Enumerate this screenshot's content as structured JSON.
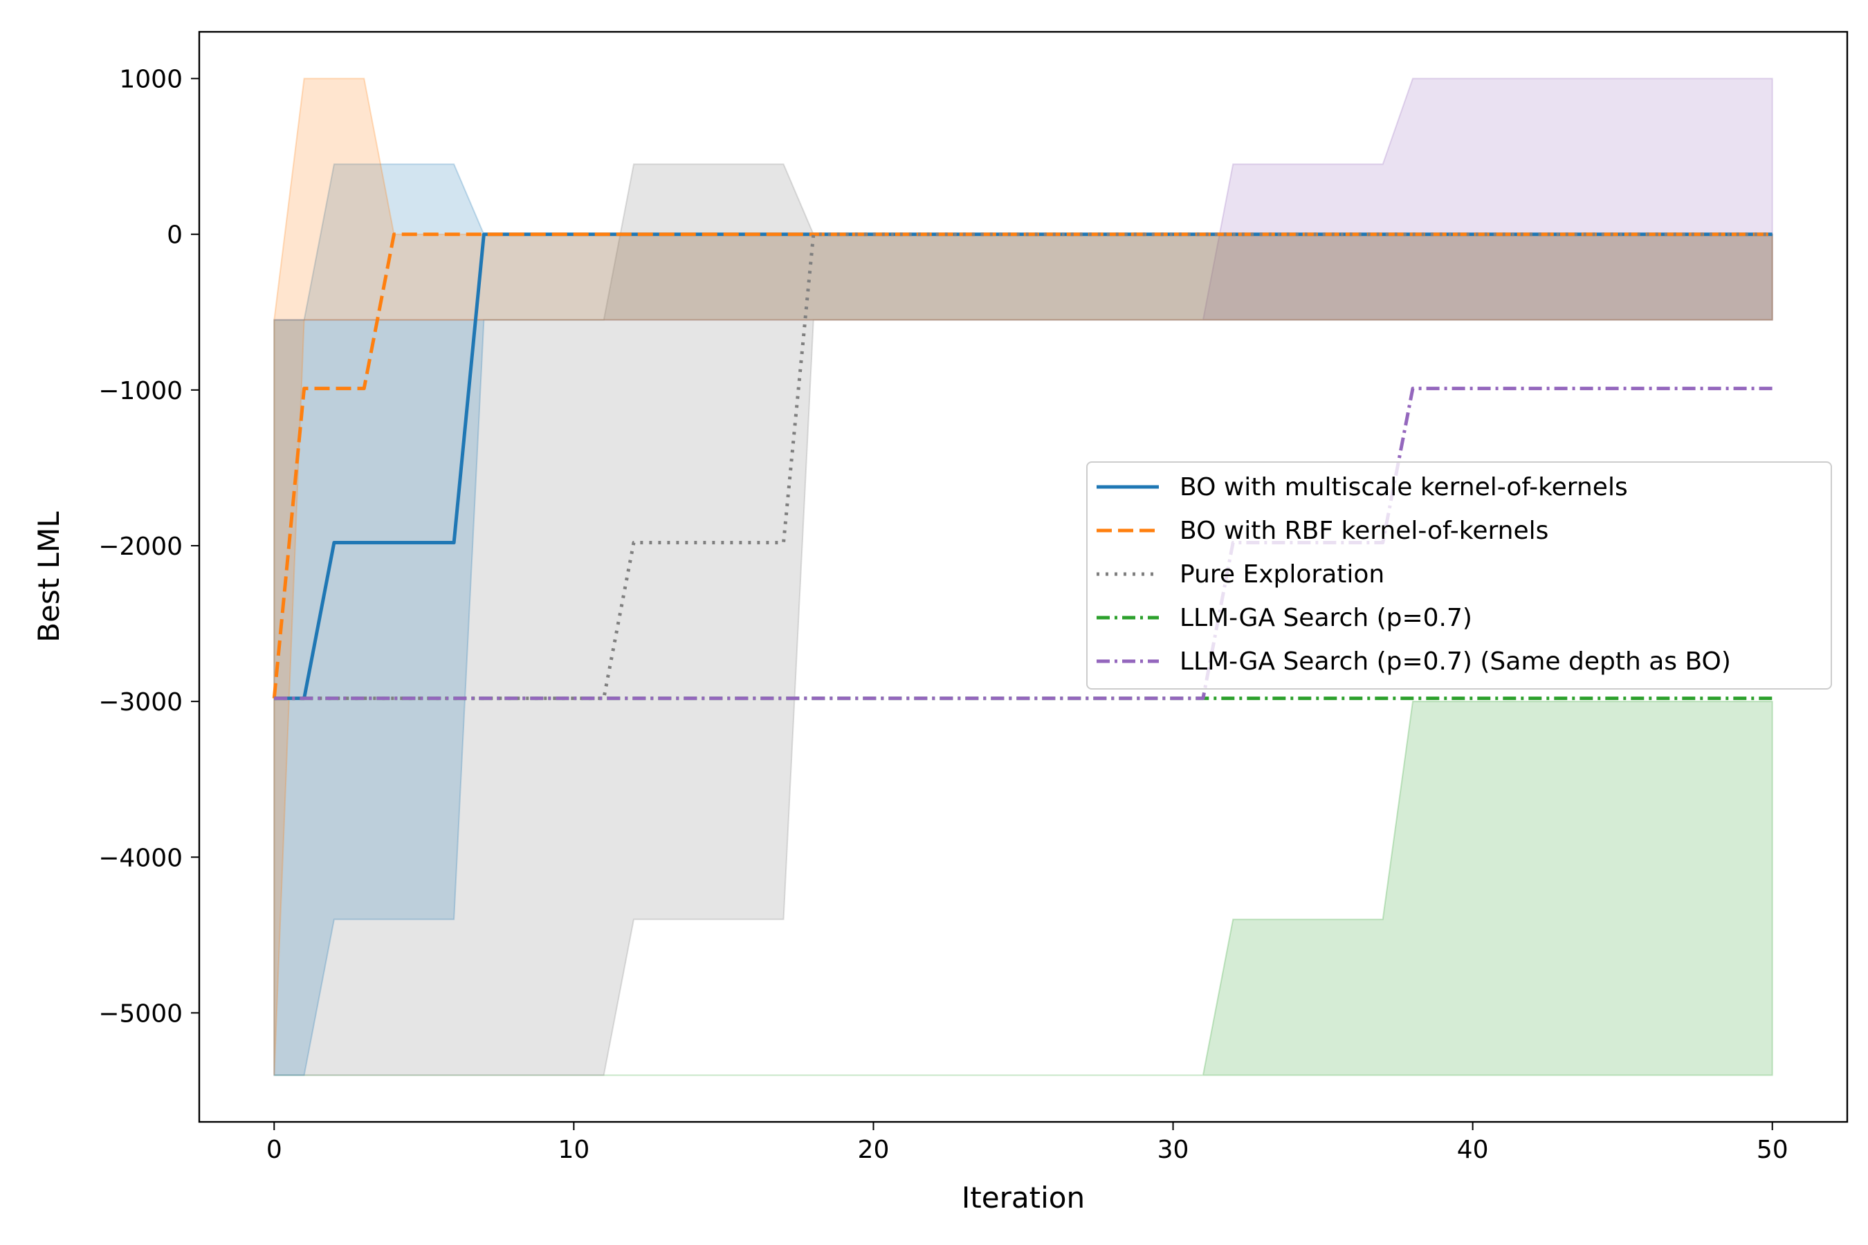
{
  "chart_data": {
    "type": "line",
    "title": "",
    "xlabel": "Iteration",
    "ylabel": "Best LML",
    "xlim": [
      -2.5,
      52.5
    ],
    "ylim": [
      -5700,
      1300
    ],
    "xticks": [
      0,
      10,
      20,
      30,
      40,
      50
    ],
    "yticks": [
      1000,
      0,
      -1000,
      -2000,
      -3000,
      -4000,
      -5000
    ],
    "xtick_labels": [
      "0",
      "10",
      "20",
      "30",
      "40",
      "50"
    ],
    "ytick_labels": [
      "1000",
      "0",
      "−1000",
      "−2000",
      "−3000",
      "−4000",
      "−5000"
    ],
    "grid": false,
    "legend_position": "center-right",
    "bands": [
      {
        "name": "LLM-GA Search (p=0.7) (Same depth as BO) range",
        "color": "#9467bd",
        "x": [
          0,
          31,
          32,
          37,
          38,
          50
        ],
        "lower": [
          -550,
          -550,
          -550,
          -550,
          -550,
          -550
        ],
        "upper": [
          -550,
          -550,
          450,
          450,
          1000,
          1000
        ]
      },
      {
        "name": "LLM-GA Search (p=0.7) range",
        "color": "#2ca02c",
        "x": [
          0,
          31,
          32,
          37,
          38,
          50
        ],
        "lower": [
          -5400,
          -5400,
          -5400,
          -5400,
          -5400,
          -5400
        ],
        "upper": [
          -5400,
          -5400,
          -4400,
          -4400,
          -3000,
          -3000
        ]
      },
      {
        "name": "Pure Exploration range",
        "color": "#7f7f7f",
        "x": [
          0,
          11,
          12,
          17,
          18,
          50
        ],
        "lower": [
          -5400,
          -5400,
          -4400,
          -4400,
          -550,
          -550
        ],
        "upper": [
          -550,
          -550,
          450,
          450,
          0,
          0
        ]
      },
      {
        "name": "BO with multiscale kernel-of-kernels range",
        "color": "#1f77b4",
        "x": [
          0,
          1,
          2,
          6,
          7,
          50
        ],
        "lower": [
          -5400,
          -5400,
          -4400,
          -4400,
          -550,
          -550
        ],
        "upper": [
          -550,
          -550,
          450,
          450,
          0,
          0
        ]
      },
      {
        "name": "BO with RBF kernel-of-kernels range",
        "color": "#ff7f0e",
        "x": [
          0,
          1,
          3,
          4,
          50
        ],
        "lower": [
          -5400,
          -550,
          -550,
          -550,
          -550
        ],
        "upper": [
          -550,
          1000,
          1000,
          0,
          0
        ]
      }
    ],
    "series": [
      {
        "name": "BO with multiscale kernel-of-kernels",
        "color": "#1f77b4",
        "style": "solid",
        "x": [
          0,
          1,
          2,
          6,
          7,
          50
        ],
        "values": [
          -2980,
          -2980,
          -1980,
          -1980,
          0,
          0
        ]
      },
      {
        "name": "BO with RBF kernel-of-kernels",
        "color": "#ff7f0e",
        "style": "dashed",
        "x": [
          0,
          1,
          3,
          4,
          50
        ],
        "values": [
          -2980,
          -990,
          -990,
          0,
          0
        ]
      },
      {
        "name": "Pure Exploration",
        "color": "#7f7f7f",
        "style": "dotted",
        "x": [
          0,
          11,
          12,
          17,
          18,
          50
        ],
        "values": [
          -2980,
          -2980,
          -1980,
          -1980,
          0,
          0
        ]
      },
      {
        "name": "LLM-GA Search (p=0.7)",
        "color": "#2ca02c",
        "style": "dashdot",
        "x": [
          0,
          50
        ],
        "values": [
          -2980,
          -2980
        ]
      },
      {
        "name": "LLM-GA Search (p=0.7) (Same depth as BO)",
        "color": "#9467bd",
        "style": "dashdot",
        "x": [
          0,
          31,
          32,
          37,
          38,
          50
        ],
        "values": [
          -2980,
          -2980,
          -1980,
          -1980,
          -990,
          -990
        ]
      }
    ]
  }
}
